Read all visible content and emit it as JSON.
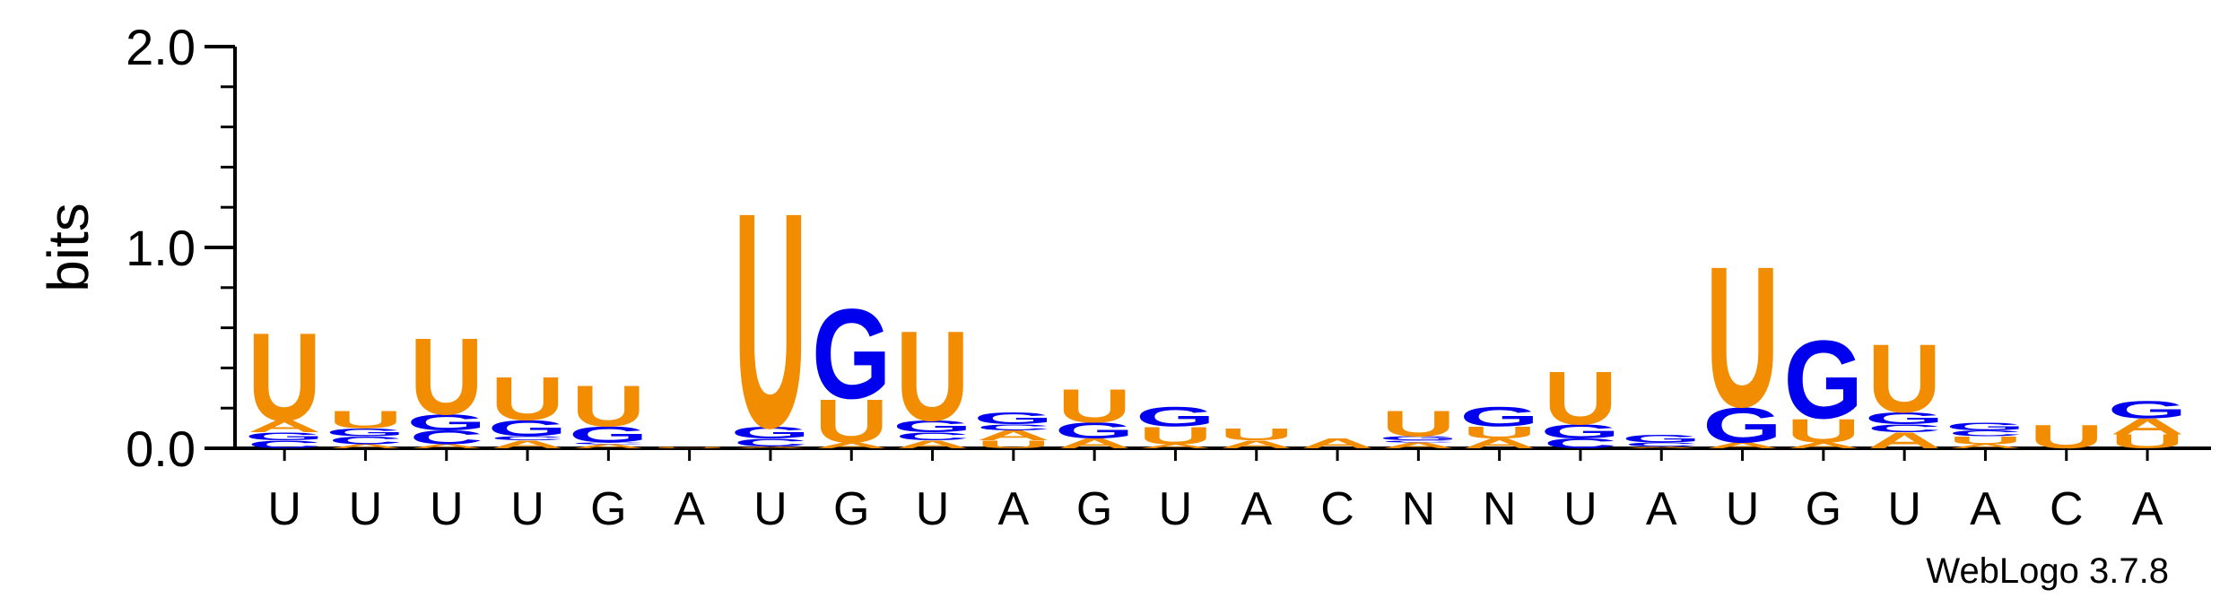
{
  "chart_data": {
    "type": "sequence-logo",
    "ylabel": "bits",
    "ylim": [
      0,
      2.0
    ],
    "yticks": [
      "0.0",
      "1.0",
      "2.0"
    ],
    "colors": {
      "U": "#f28c00",
      "A": "#f28c00",
      "G": "#0000ee",
      "C": "#0000ee"
    },
    "positions": [
      {
        "label": "U",
        "stack": [
          {
            "base": "C",
            "bits": 0.04
          },
          {
            "base": "G",
            "bits": 0.04
          },
          {
            "base": "A",
            "bits": 0.06
          },
          {
            "base": "U",
            "bits": 0.45
          }
        ]
      },
      {
        "label": "U",
        "stack": [
          {
            "base": "A",
            "bits": 0.02
          },
          {
            "base": "C",
            "bits": 0.04
          },
          {
            "base": "G",
            "bits": 0.04
          },
          {
            "base": "U",
            "bits": 0.09
          }
        ]
      },
      {
        "label": "U",
        "stack": [
          {
            "base": "A",
            "bits": 0.02
          },
          {
            "base": "C",
            "bits": 0.07
          },
          {
            "base": "G",
            "bits": 0.08
          },
          {
            "base": "U",
            "bits": 0.39
          }
        ]
      },
      {
        "label": "U",
        "stack": [
          {
            "base": "A",
            "bits": 0.04
          },
          {
            "base": "C",
            "bits": 0.02
          },
          {
            "base": "G",
            "bits": 0.08
          },
          {
            "base": "U",
            "bits": 0.22
          }
        ]
      },
      {
        "label": "G",
        "stack": [
          {
            "base": "A",
            "bits": 0.02
          },
          {
            "base": "C",
            "bits": 0.01
          },
          {
            "base": "G",
            "bits": 0.08
          },
          {
            "base": "U",
            "bits": 0.21
          }
        ]
      },
      {
        "label": "A",
        "stack": [
          {
            "base": "U",
            "bits": 0.005
          }
        ]
      },
      {
        "label": "U",
        "stack": [
          {
            "base": "A",
            "bits": 0.01
          },
          {
            "base": "C",
            "bits": 0.04
          },
          {
            "base": "G",
            "bits": 0.06
          },
          {
            "base": "U",
            "bits": 1.1
          }
        ]
      },
      {
        "label": "G",
        "stack": [
          {
            "base": "A",
            "bits": 0.03
          },
          {
            "base": "U",
            "bits": 0.22
          },
          {
            "base": "G",
            "bits": 0.46
          }
        ]
      },
      {
        "label": "U",
        "stack": [
          {
            "base": "A",
            "bits": 0.04
          },
          {
            "base": "C",
            "bits": 0.04
          },
          {
            "base": "G",
            "bits": 0.06
          },
          {
            "base": "U",
            "bits": 0.46
          }
        ]
      },
      {
        "label": "A",
        "stack": [
          {
            "base": "U",
            "bits": 0.04
          },
          {
            "base": "A",
            "bits": 0.05
          },
          {
            "base": "C",
            "bits": 0.03
          },
          {
            "base": "G",
            "bits": 0.06
          }
        ]
      },
      {
        "label": "G",
        "stack": [
          {
            "base": "A",
            "bits": 0.05
          },
          {
            "base": "G",
            "bits": 0.08
          },
          {
            "base": "U",
            "bits": 0.17
          }
        ]
      },
      {
        "label": "U",
        "stack": [
          {
            "base": "A",
            "bits": 0.02
          },
          {
            "base": "U",
            "bits": 0.09
          },
          {
            "base": "G",
            "bits": 0.1
          }
        ]
      },
      {
        "label": "A",
        "stack": [
          {
            "base": "A",
            "bits": 0.04
          },
          {
            "base": "U",
            "bits": 0.06
          }
        ]
      },
      {
        "label": "C",
        "stack": [
          {
            "base": "A",
            "bits": 0.05
          }
        ]
      },
      {
        "label": "N",
        "stack": [
          {
            "base": "A",
            "bits": 0.03
          },
          {
            "base": "C",
            "bits": 0.01
          },
          {
            "base": "G",
            "bits": 0.02
          },
          {
            "base": "U",
            "bits": 0.13
          }
        ]
      },
      {
        "label": "N",
        "stack": [
          {
            "base": "A",
            "bits": 0.05
          },
          {
            "base": "U",
            "bits": 0.06
          },
          {
            "base": "G",
            "bits": 0.1
          }
        ]
      },
      {
        "label": "U",
        "stack": [
          {
            "base": "C",
            "bits": 0.05
          },
          {
            "base": "G",
            "bits": 0.07
          },
          {
            "base": "U",
            "bits": 0.27
          }
        ]
      },
      {
        "label": "A",
        "stack": [
          {
            "base": "A",
            "bits": 0.01
          },
          {
            "base": "C",
            "bits": 0.02
          },
          {
            "base": "G",
            "bits": 0.04
          }
        ]
      },
      {
        "label": "U",
        "stack": [
          {
            "base": "A",
            "bits": 0.03
          },
          {
            "base": "G",
            "bits": 0.18
          },
          {
            "base": "U",
            "bits": 0.72
          }
        ]
      },
      {
        "label": "G",
        "stack": [
          {
            "base": "A",
            "bits": 0.03
          },
          {
            "base": "U",
            "bits": 0.12
          },
          {
            "base": "G",
            "bits": 0.4
          }
        ]
      },
      {
        "label": "U",
        "stack": [
          {
            "base": "A",
            "bits": 0.08
          },
          {
            "base": "C",
            "bits": 0.04
          },
          {
            "base": "G",
            "bits": 0.06
          },
          {
            "base": "U",
            "bits": 0.35
          }
        ]
      },
      {
        "label": "A",
        "stack": [
          {
            "base": "A",
            "bits": 0.02
          },
          {
            "base": "U",
            "bits": 0.04
          },
          {
            "base": "C",
            "bits": 0.03
          },
          {
            "base": "G",
            "bits": 0.04
          }
        ]
      },
      {
        "label": "C",
        "stack": [
          {
            "base": "U",
            "bits": 0.12
          }
        ]
      },
      {
        "label": "A",
        "stack": [
          {
            "base": "U",
            "bits": 0.07
          },
          {
            "base": "A",
            "bits": 0.08
          },
          {
            "base": "G",
            "bits": 0.09
          }
        ]
      }
    ]
  },
  "credit": "WebLogo 3.7.8"
}
